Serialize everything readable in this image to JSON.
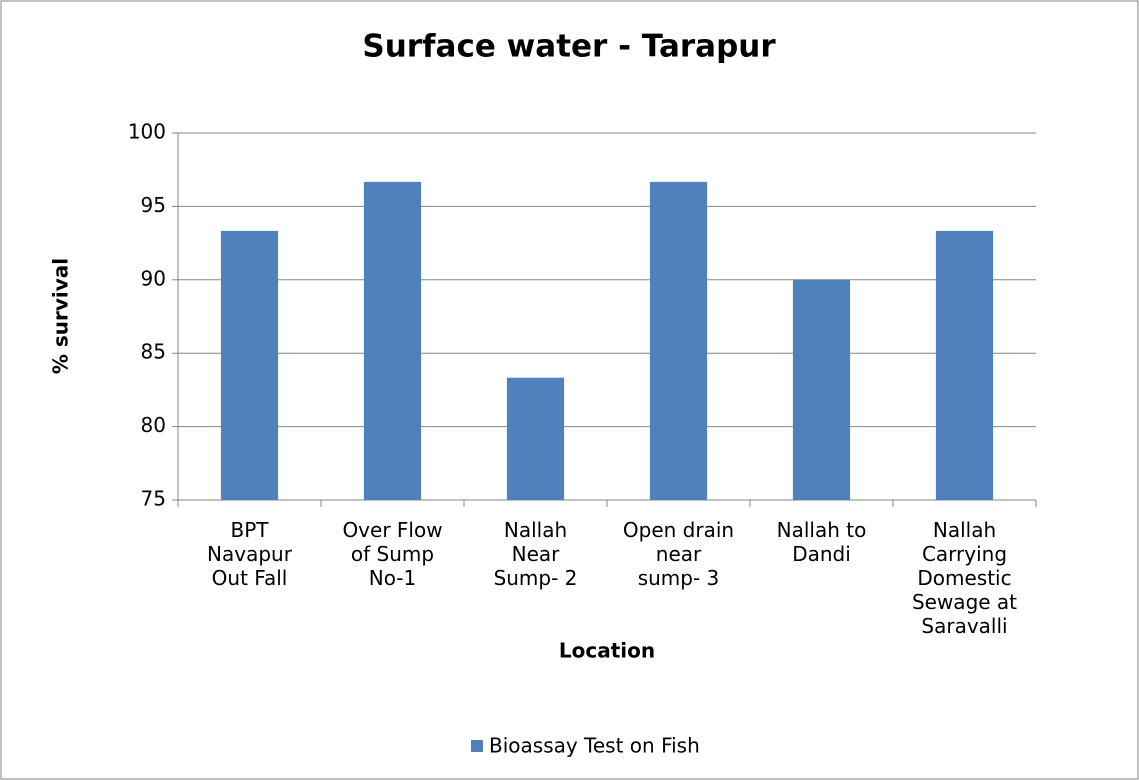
{
  "chart_data": {
    "type": "bar",
    "title": "Surface water - Tarapur",
    "x_label": "Location",
    "y_label": "% survival",
    "categories": [
      "BPT\nNavapur\nOut Fall",
      "Over Flow\nof Sump\nNo-1",
      "Nallah\nNear\nSump- 2",
      "Open drain\nnear\nsump- 3",
      "Nallah to\nDandi",
      "Nallah\nCarrying\nDomestic\nSewage at\nSaravalli"
    ],
    "series": [
      {
        "name": "Bioassay Test on Fish",
        "color": "#4f81bd",
        "values": [
          93.33,
          96.67,
          83.33,
          96.67,
          90,
          93.33
        ]
      }
    ],
    "ylim": [
      75,
      100
    ],
    "yticks": [
      75,
      80,
      85,
      90,
      95,
      100
    ],
    "grid": true,
    "legend": "bottom"
  }
}
